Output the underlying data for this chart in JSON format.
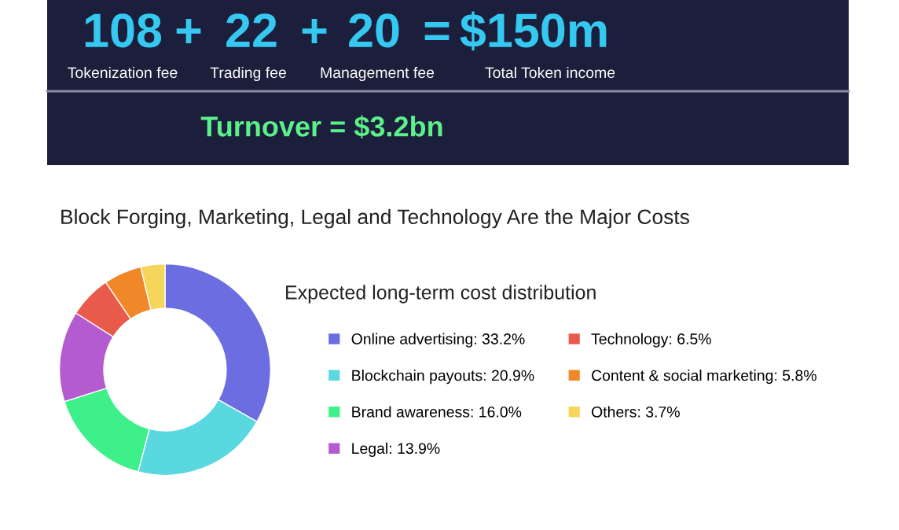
{
  "chart_data": {
    "type": "donut",
    "title": "Block Forging, Marketing, Legal and Technology Are the Major Costs",
    "subtitle": "Expected long-term cost distribution",
    "categories": [
      "Online advertising: 33.2%",
      "Blockchain payouts: 20.9%",
      "Brand awareness: 16.0%",
      "Legal: 13.9%",
      "Technology: 6.5%",
      "Content & social marketing: 5.8%",
      "Others: 3.7%"
    ],
    "values": [
      33.2,
      20.9,
      16.0,
      13.9,
      6.5,
      5.8,
      3.7
    ],
    "colors": [
      "#6b6de0",
      "#5ad8e0",
      "#3ef08a",
      "#b55bd0",
      "#e85a4a",
      "#f0882a",
      "#f5d55a"
    ],
    "legend": "right",
    "annotations": [
      "108",
      "+",
      "22",
      "+",
      "20",
      "=",
      "$150m",
      "Tokenization fee",
      "Trading fee",
      "Management fee",
      "Total Token income",
      "Turnover = $3.2bn"
    ]
  }
}
